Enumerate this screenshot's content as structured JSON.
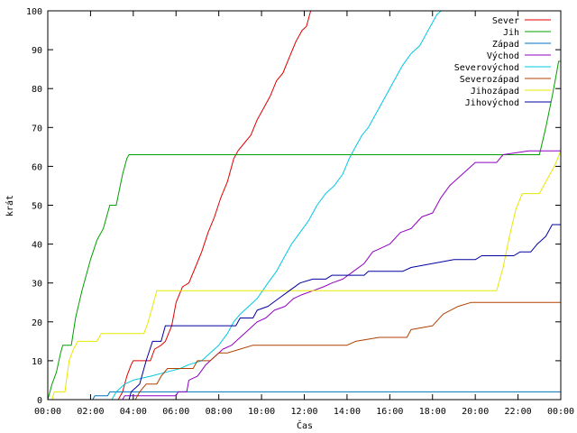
{
  "chart_data": {
    "type": "line",
    "title": "",
    "xlabel": "Čas",
    "ylabel": "krát",
    "xlim": [
      0,
      24
    ],
    "ylim": [
      0,
      100
    ],
    "x_ticks": [
      {
        "value": 0,
        "label": "00:00"
      },
      {
        "value": 2,
        "label": "02:00"
      },
      {
        "value": 4,
        "label": "04:00"
      },
      {
        "value": 6,
        "label": "06:00"
      },
      {
        "value": 8,
        "label": "08:00"
      },
      {
        "value": 10,
        "label": "10:00"
      },
      {
        "value": 12,
        "label": "12:00"
      },
      {
        "value": 14,
        "label": "14:00"
      },
      {
        "value": 16,
        "label": "16:00"
      },
      {
        "value": 18,
        "label": "18:00"
      },
      {
        "value": 20,
        "label": "20:00"
      },
      {
        "value": 22,
        "label": "22:00"
      },
      {
        "value": 24,
        "label": "00:00"
      }
    ],
    "y_ticks": [
      0,
      10,
      20,
      30,
      40,
      50,
      60,
      70,
      80,
      90,
      100
    ],
    "grid": false,
    "legend_position": "top-right",
    "series": [
      {
        "name": "Sever",
        "color": "#e00000",
        "points": [
          [
            0,
            0
          ],
          [
            3.3,
            0
          ],
          [
            3.5,
            2
          ],
          [
            3.7,
            6
          ],
          [
            3.9,
            9
          ],
          [
            4.0,
            10
          ],
          [
            4.8,
            10
          ],
          [
            5.0,
            13
          ],
          [
            5.3,
            14
          ],
          [
            5.5,
            15
          ],
          [
            5.8,
            19
          ],
          [
            6.0,
            25
          ],
          [
            6.3,
            29
          ],
          [
            6.6,
            30
          ],
          [
            6.9,
            34
          ],
          [
            7.2,
            38
          ],
          [
            7.5,
            43
          ],
          [
            7.8,
            47
          ],
          [
            8.1,
            52
          ],
          [
            8.4,
            56
          ],
          [
            8.7,
            62
          ],
          [
            8.9,
            64
          ],
          [
            9.2,
            66
          ],
          [
            9.5,
            68
          ],
          [
            9.8,
            72
          ],
          [
            10.1,
            75
          ],
          [
            10.4,
            78
          ],
          [
            10.7,
            82
          ],
          [
            11.0,
            84
          ],
          [
            11.3,
            88
          ],
          [
            11.6,
            92
          ],
          [
            11.9,
            95
          ],
          [
            12.1,
            96
          ],
          [
            12.3,
            100
          ],
          [
            12.4,
            101
          ]
        ]
      },
      {
        "name": "Jih",
        "color": "#00a000",
        "points": [
          [
            0,
            0
          ],
          [
            0.2,
            4
          ],
          [
            0.4,
            7
          ],
          [
            0.6,
            12
          ],
          [
            0.7,
            14
          ],
          [
            1.1,
            14
          ],
          [
            1.3,
            21
          ],
          [
            1.6,
            28
          ],
          [
            2.0,
            36
          ],
          [
            2.3,
            41
          ],
          [
            2.6,
            44
          ],
          [
            2.9,
            50
          ],
          [
            3.2,
            50
          ],
          [
            3.5,
            58
          ],
          [
            3.7,
            62
          ],
          [
            3.8,
            63
          ],
          [
            23.0,
            63
          ],
          [
            23.3,
            70
          ],
          [
            23.6,
            78
          ],
          [
            23.8,
            84
          ],
          [
            23.9,
            87
          ],
          [
            24,
            87
          ]
        ]
      },
      {
        "name": "Západ",
        "color": "#0070c0",
        "points": [
          [
            0,
            0
          ],
          [
            2.1,
            0
          ],
          [
            2.2,
            1
          ],
          [
            2.8,
            1
          ],
          [
            2.9,
            2
          ],
          [
            24,
            2
          ]
        ]
      },
      {
        "name": "Východ",
        "color": "#9000c0",
        "points": [
          [
            0,
            0
          ],
          [
            3.5,
            0
          ],
          [
            3.6,
            1
          ],
          [
            6.0,
            1
          ],
          [
            6.1,
            2
          ],
          [
            6.5,
            2
          ],
          [
            6.6,
            5
          ],
          [
            7.0,
            6
          ],
          [
            7.4,
            9
          ],
          [
            7.8,
            11
          ],
          [
            8.2,
            13
          ],
          [
            8.6,
            14
          ],
          [
            9.0,
            16
          ],
          [
            9.4,
            18
          ],
          [
            9.8,
            20
          ],
          [
            10.2,
            21
          ],
          [
            10.6,
            23
          ],
          [
            11.1,
            24
          ],
          [
            11.5,
            26
          ],
          [
            11.9,
            27
          ],
          [
            12.4,
            28
          ],
          [
            12.9,
            29
          ],
          [
            13.3,
            30
          ],
          [
            13.8,
            31
          ],
          [
            14.3,
            33
          ],
          [
            14.8,
            35
          ],
          [
            15.2,
            38
          ],
          [
            15.6,
            39
          ],
          [
            16.0,
            40
          ],
          [
            16.5,
            43
          ],
          [
            17.0,
            44
          ],
          [
            17.5,
            47
          ],
          [
            18.0,
            48
          ],
          [
            18.4,
            52
          ],
          [
            18.8,
            55
          ],
          [
            19.2,
            57
          ],
          [
            19.6,
            59
          ],
          [
            20.0,
            61
          ],
          [
            21.0,
            61
          ],
          [
            21.3,
            63
          ],
          [
            22.5,
            64
          ],
          [
            24,
            64
          ]
        ]
      },
      {
        "name": "Severovýchod",
        "color": "#00c8e0",
        "points": [
          [
            0,
            0
          ],
          [
            3.0,
            0
          ],
          [
            3.2,
            2
          ],
          [
            3.6,
            4
          ],
          [
            4.0,
            5
          ],
          [
            4.8,
            6
          ],
          [
            5.5,
            7
          ],
          [
            6.2,
            8
          ],
          [
            6.6,
            9
          ],
          [
            7.2,
            10
          ],
          [
            7.6,
            12
          ],
          [
            8.0,
            14
          ],
          [
            8.4,
            17
          ],
          [
            8.7,
            20
          ],
          [
            9.0,
            22
          ],
          [
            9.4,
            24
          ],
          [
            9.8,
            26
          ],
          [
            10.3,
            30
          ],
          [
            10.7,
            33
          ],
          [
            11.0,
            36
          ],
          [
            11.4,
            40
          ],
          [
            11.8,
            43
          ],
          [
            12.2,
            46
          ],
          [
            12.6,
            50
          ],
          [
            13.0,
            53
          ],
          [
            13.4,
            55
          ],
          [
            13.8,
            58
          ],
          [
            14.1,
            62
          ],
          [
            14.4,
            65
          ],
          [
            14.7,
            68
          ],
          [
            15.0,
            70
          ],
          [
            15.3,
            73
          ],
          [
            15.6,
            76
          ],
          [
            16.0,
            80
          ],
          [
            16.3,
            83
          ],
          [
            16.6,
            86
          ],
          [
            17.0,
            89
          ],
          [
            17.4,
            91
          ],
          [
            17.7,
            94
          ],
          [
            18.0,
            97
          ],
          [
            18.2,
            99
          ],
          [
            18.4,
            100
          ],
          [
            18.6,
            101
          ]
        ]
      },
      {
        "name": "Severozápad",
        "color": "#b04000",
        "points": [
          [
            0,
            0
          ],
          [
            4.1,
            0
          ],
          [
            4.3,
            2
          ],
          [
            4.6,
            4
          ],
          [
            5.1,
            4
          ],
          [
            5.3,
            6
          ],
          [
            5.6,
            8
          ],
          [
            6.8,
            8
          ],
          [
            7.0,
            10
          ],
          [
            7.6,
            10
          ],
          [
            8.0,
            12
          ],
          [
            8.4,
            12
          ],
          [
            9.0,
            13
          ],
          [
            9.6,
            14
          ],
          [
            14.0,
            14
          ],
          [
            14.4,
            15
          ],
          [
            15.5,
            16
          ],
          [
            16.8,
            16
          ],
          [
            17.0,
            18
          ],
          [
            18.0,
            19
          ],
          [
            18.5,
            22
          ],
          [
            19.2,
            24
          ],
          [
            19.8,
            25
          ],
          [
            24,
            25
          ]
        ]
      },
      {
        "name": "Jihozápad",
        "color": "#e8e800",
        "points": [
          [
            0,
            0
          ],
          [
            0.2,
            0
          ],
          [
            0.3,
            2
          ],
          [
            0.8,
            2
          ],
          [
            0.9,
            6
          ],
          [
            1.0,
            10
          ],
          [
            1.2,
            13
          ],
          [
            1.4,
            15
          ],
          [
            2.3,
            15
          ],
          [
            2.5,
            17
          ],
          [
            4.5,
            17
          ],
          [
            4.7,
            20
          ],
          [
            4.9,
            24
          ],
          [
            5.1,
            28
          ],
          [
            21.0,
            28
          ],
          [
            21.3,
            34
          ],
          [
            21.6,
            42
          ],
          [
            21.9,
            49
          ],
          [
            22.2,
            53
          ],
          [
            23.0,
            53
          ],
          [
            23.2,
            55
          ],
          [
            23.5,
            58
          ],
          [
            23.7,
            60
          ],
          [
            24,
            64
          ]
        ]
      },
      {
        "name": "Jihovýchod",
        "color": "#0000a0",
        "points": [
          [
            0,
            0
          ],
          [
            3.8,
            0
          ],
          [
            3.9,
            2
          ],
          [
            4.3,
            4
          ],
          [
            4.6,
            10
          ],
          [
            4.9,
            15
          ],
          [
            5.3,
            15
          ],
          [
            5.5,
            19
          ],
          [
            8.8,
            19
          ],
          [
            9.0,
            21
          ],
          [
            9.6,
            21
          ],
          [
            9.8,
            23
          ],
          [
            10.3,
            24
          ],
          [
            10.8,
            26
          ],
          [
            11.3,
            28
          ],
          [
            11.8,
            30
          ],
          [
            12.4,
            31
          ],
          [
            13.0,
            31
          ],
          [
            13.3,
            32
          ],
          [
            14.8,
            32
          ],
          [
            15.0,
            33
          ],
          [
            16.6,
            33
          ],
          [
            17.0,
            34
          ],
          [
            18.0,
            35
          ],
          [
            19.0,
            36
          ],
          [
            20.0,
            36
          ],
          [
            20.3,
            37
          ],
          [
            21.8,
            37
          ],
          [
            22.1,
            38
          ],
          [
            22.6,
            38
          ],
          [
            22.9,
            40
          ],
          [
            23.3,
            42
          ],
          [
            23.6,
            45
          ],
          [
            24,
            45
          ]
        ]
      }
    ]
  }
}
